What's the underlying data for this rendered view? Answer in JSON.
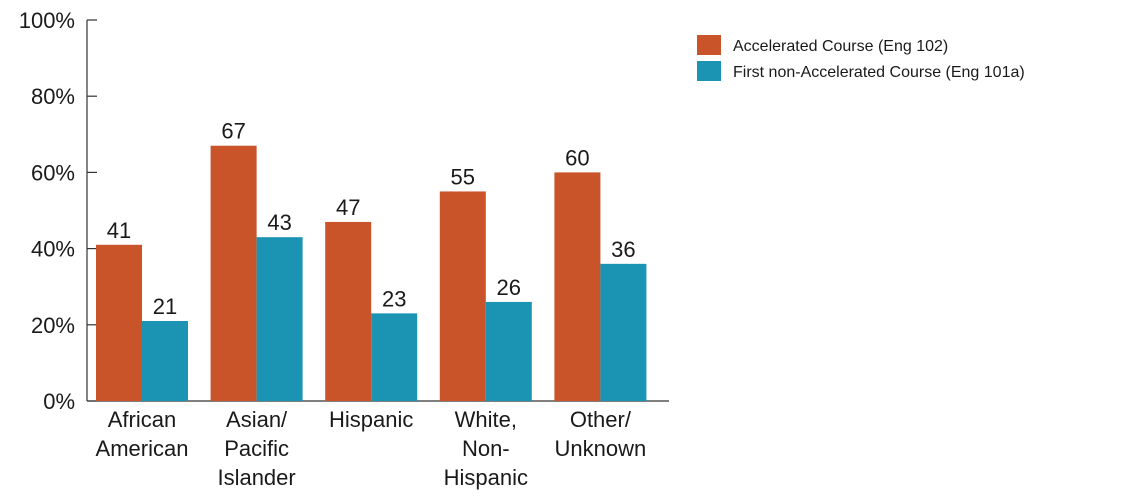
{
  "chart_data": {
    "type": "bar",
    "categories": [
      [
        "African",
        "American"
      ],
      [
        "Asian/",
        "Pacific",
        "Islander"
      ],
      [
        "Hispanic"
      ],
      [
        "White,",
        "Non-",
        "Hispanic"
      ],
      [
        "Other/",
        "Unknown"
      ]
    ],
    "series": [
      {
        "name": "Accelerated Course (Eng 102)",
        "values": [
          41,
          67,
          47,
          55,
          60
        ],
        "color": "#c9542a"
      },
      {
        "name": "First non-Accelerated Course (Eng 101a)",
        "values": [
          21,
          43,
          23,
          26,
          36
        ],
        "color": "#1b93b3"
      }
    ],
    "y_ticks": [
      "0%",
      "20%",
      "40%",
      "60%",
      "80%",
      "100%"
    ],
    "ylim": [
      0,
      100
    ],
    "grid": false,
    "legend_position": "top-right"
  }
}
